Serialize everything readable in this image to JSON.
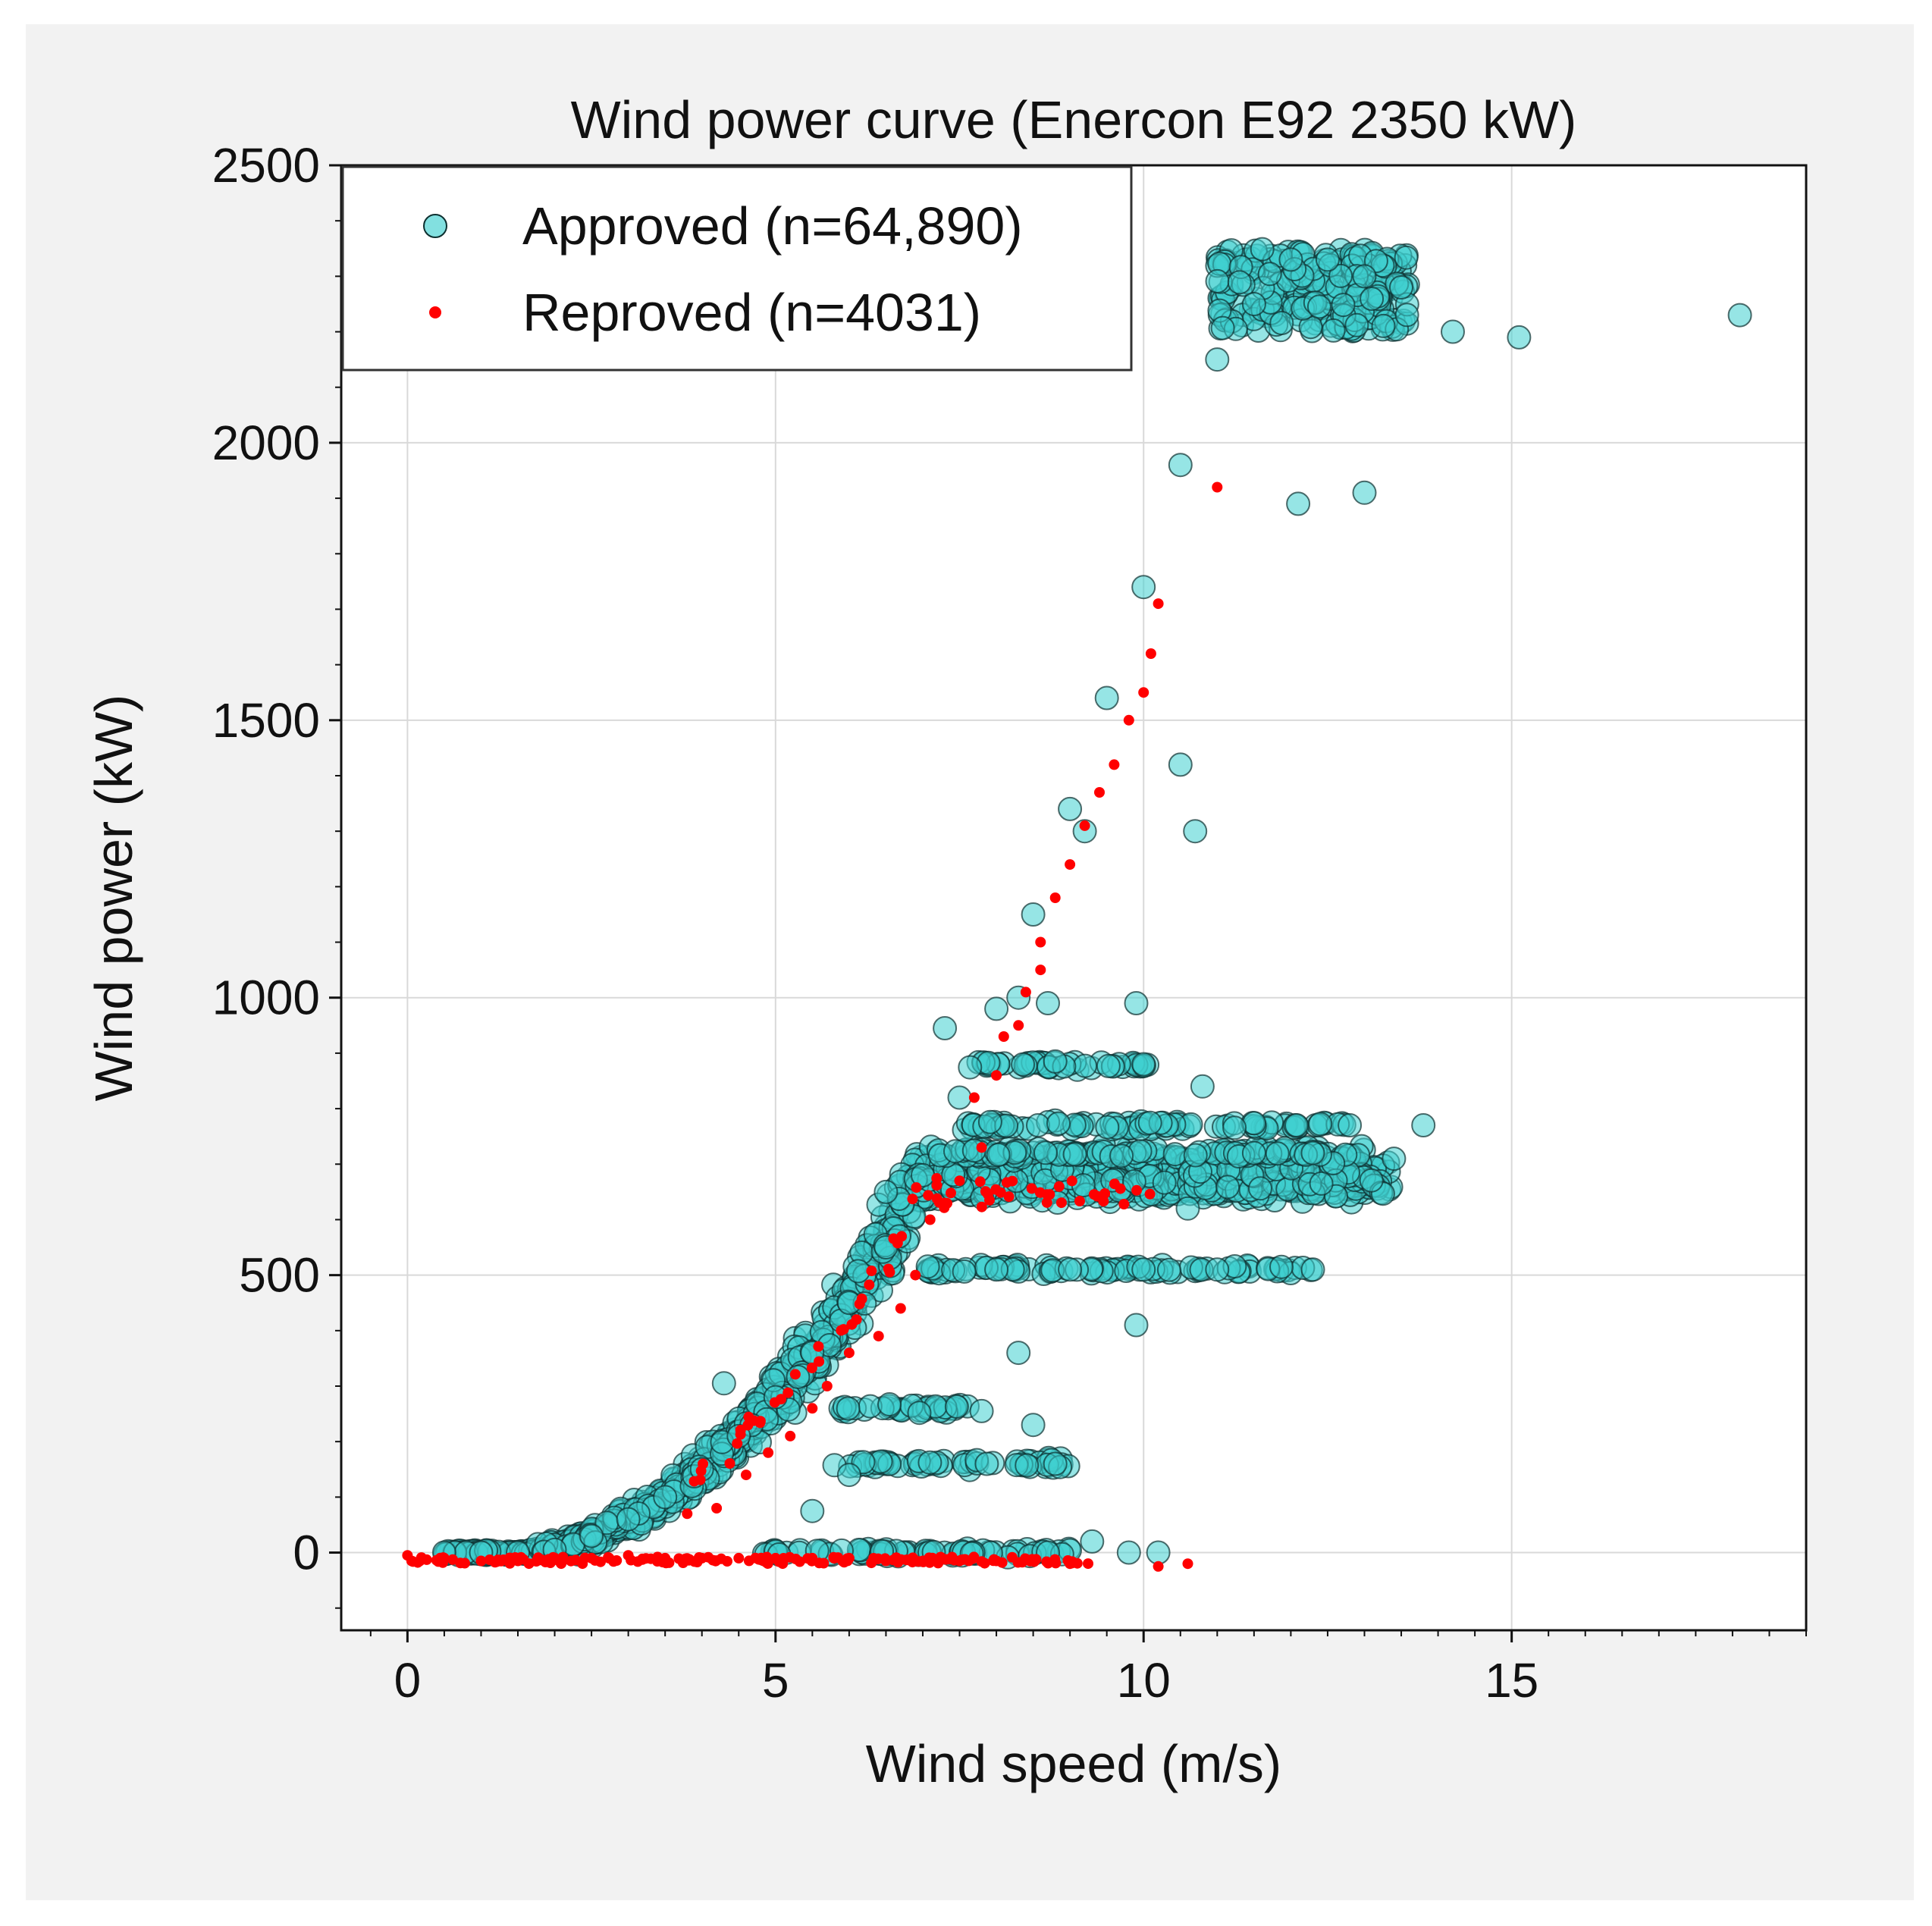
{
  "chart_data": {
    "type": "scatter",
    "title": "Wind power curve (Enercon E92 2350 kW)",
    "xlabel": "Wind speed (m/s)",
    "ylabel": "Wind power (kW)",
    "xlim": [
      -0.9,
      19.0
    ],
    "ylim": [
      -140,
      2500
    ],
    "xticks": [
      0,
      5,
      10,
      15
    ],
    "yticks": [
      0,
      500,
      1000,
      1500,
      2000,
      2500
    ],
    "grid": true,
    "legend": "top-left",
    "colors": {
      "approved_fill": "#3fd0d0",
      "approved_edge": "#0d2f2f",
      "reproved": "#ff0000",
      "grid": "#d9d9d9",
      "figure_bg": "#f2f2f2"
    },
    "series": [
      {
        "name": "Approved (n=64,890)",
        "marker": "circle",
        "color": "#3fd0d0",
        "description_points": [
          [
            0.5,
            0
          ],
          [
            1.0,
            0
          ],
          [
            1.5,
            0
          ],
          [
            2.0,
            5
          ],
          [
            2.5,
            30
          ],
          [
            3.0,
            60
          ],
          [
            3.5,
            100
          ],
          [
            4.0,
            150
          ],
          [
            4.5,
            210
          ],
          [
            5.0,
            280
          ],
          [
            5.5,
            360
          ],
          [
            6.0,
            450
          ],
          [
            6.5,
            550
          ],
          [
            7.0,
            680
          ],
          [
            7.5,
            820
          ],
          [
            8.0,
            980
          ],
          [
            8.5,
            1150
          ],
          [
            9.0,
            1340
          ],
          [
            9.5,
            1540
          ],
          [
            10.0,
            1740
          ],
          [
            10.5,
            1960
          ],
          [
            11.0,
            2150
          ],
          [
            11.5,
            2250
          ],
          [
            12.0,
            2330
          ],
          [
            12.5,
            2330
          ],
          [
            13.0,
            2300
          ],
          [
            13.5,
            2280
          ],
          [
            14.2,
            2200
          ],
          [
            15.1,
            2190
          ],
          [
            18.1,
            2230
          ],
          [
            13.0,
            1910
          ],
          [
            12.1,
            1890
          ],
          [
            4.3,
            305
          ],
          [
            7.3,
            945
          ],
          [
            6.5,
            650
          ],
          [
            8.8,
            885
          ],
          [
            10.0,
            880
          ],
          [
            10.8,
            840
          ],
          [
            12.8,
            770
          ],
          [
            13.8,
            770
          ],
          [
            12.3,
            720
          ],
          [
            11.5,
            720
          ],
          [
            9.7,
            715
          ],
          [
            12.3,
            510
          ],
          [
            11.0,
            510
          ],
          [
            10.0,
            510
          ],
          [
            9.0,
            510
          ],
          [
            8.0,
            510
          ],
          [
            10.6,
            620
          ],
          [
            9.9,
            410
          ],
          [
            8.3,
            360
          ],
          [
            8.8,
            160
          ],
          [
            8.5,
            230
          ],
          [
            7.8,
            255
          ],
          [
            6.0,
            140
          ],
          [
            5.5,
            75
          ],
          [
            9.8,
            0
          ],
          [
            10.2,
            0
          ],
          [
            9.3,
            20
          ],
          [
            8.7,
            0
          ],
          [
            9.2,
            1300
          ],
          [
            10.7,
            1300
          ],
          [
            10.5,
            1420
          ],
          [
            8.7,
            990
          ],
          [
            9.9,
            990
          ],
          [
            8.3,
            1000
          ]
        ]
      },
      {
        "name": "Reproved (n=4031)",
        "marker": "dot",
        "color": "#ff0000",
        "description_points": [
          [
            0.0,
            -5
          ],
          [
            0.5,
            -10
          ],
          [
            1.0,
            -15
          ],
          [
            1.5,
            -15
          ],
          [
            2.0,
            -10
          ],
          [
            2.5,
            -10
          ],
          [
            3.0,
            -5
          ],
          [
            3.5,
            -10
          ],
          [
            4.0,
            -10
          ],
          [
            4.5,
            -10
          ],
          [
            5.0,
            -10
          ],
          [
            5.5,
            -10
          ],
          [
            6.0,
            -10
          ],
          [
            6.5,
            -15
          ],
          [
            7.0,
            -15
          ],
          [
            7.5,
            -15
          ],
          [
            8.0,
            -15
          ],
          [
            8.5,
            -15
          ],
          [
            9.0,
            -20
          ],
          [
            10.2,
            -25
          ],
          [
            10.6,
            -20
          ],
          [
            3.8,
            70
          ],
          [
            4.2,
            80
          ],
          [
            4.6,
            140
          ],
          [
            4.9,
            180
          ],
          [
            5.2,
            210
          ],
          [
            5.5,
            260
          ],
          [
            5.7,
            300
          ],
          [
            6.0,
            360
          ],
          [
            6.1,
            420
          ],
          [
            6.4,
            390
          ],
          [
            6.7,
            440
          ],
          [
            6.9,
            500
          ],
          [
            7.1,
            600
          ],
          [
            7.3,
            630
          ],
          [
            7.5,
            670
          ],
          [
            7.7,
            820
          ],
          [
            7.8,
            730
          ],
          [
            8.0,
            860
          ],
          [
            8.1,
            930
          ],
          [
            8.3,
            950
          ],
          [
            8.4,
            1010
          ],
          [
            8.6,
            1050
          ],
          [
            8.6,
            1100
          ],
          [
            8.8,
            1180
          ],
          [
            9.0,
            1240
          ],
          [
            9.2,
            1310
          ],
          [
            9.4,
            1370
          ],
          [
            9.6,
            1420
          ],
          [
            9.8,
            1500
          ],
          [
            10.0,
            1550
          ],
          [
            10.1,
            1620
          ],
          [
            10.2,
            1710
          ],
          [
            11.0,
            1920
          ]
        ]
      }
    ]
  }
}
